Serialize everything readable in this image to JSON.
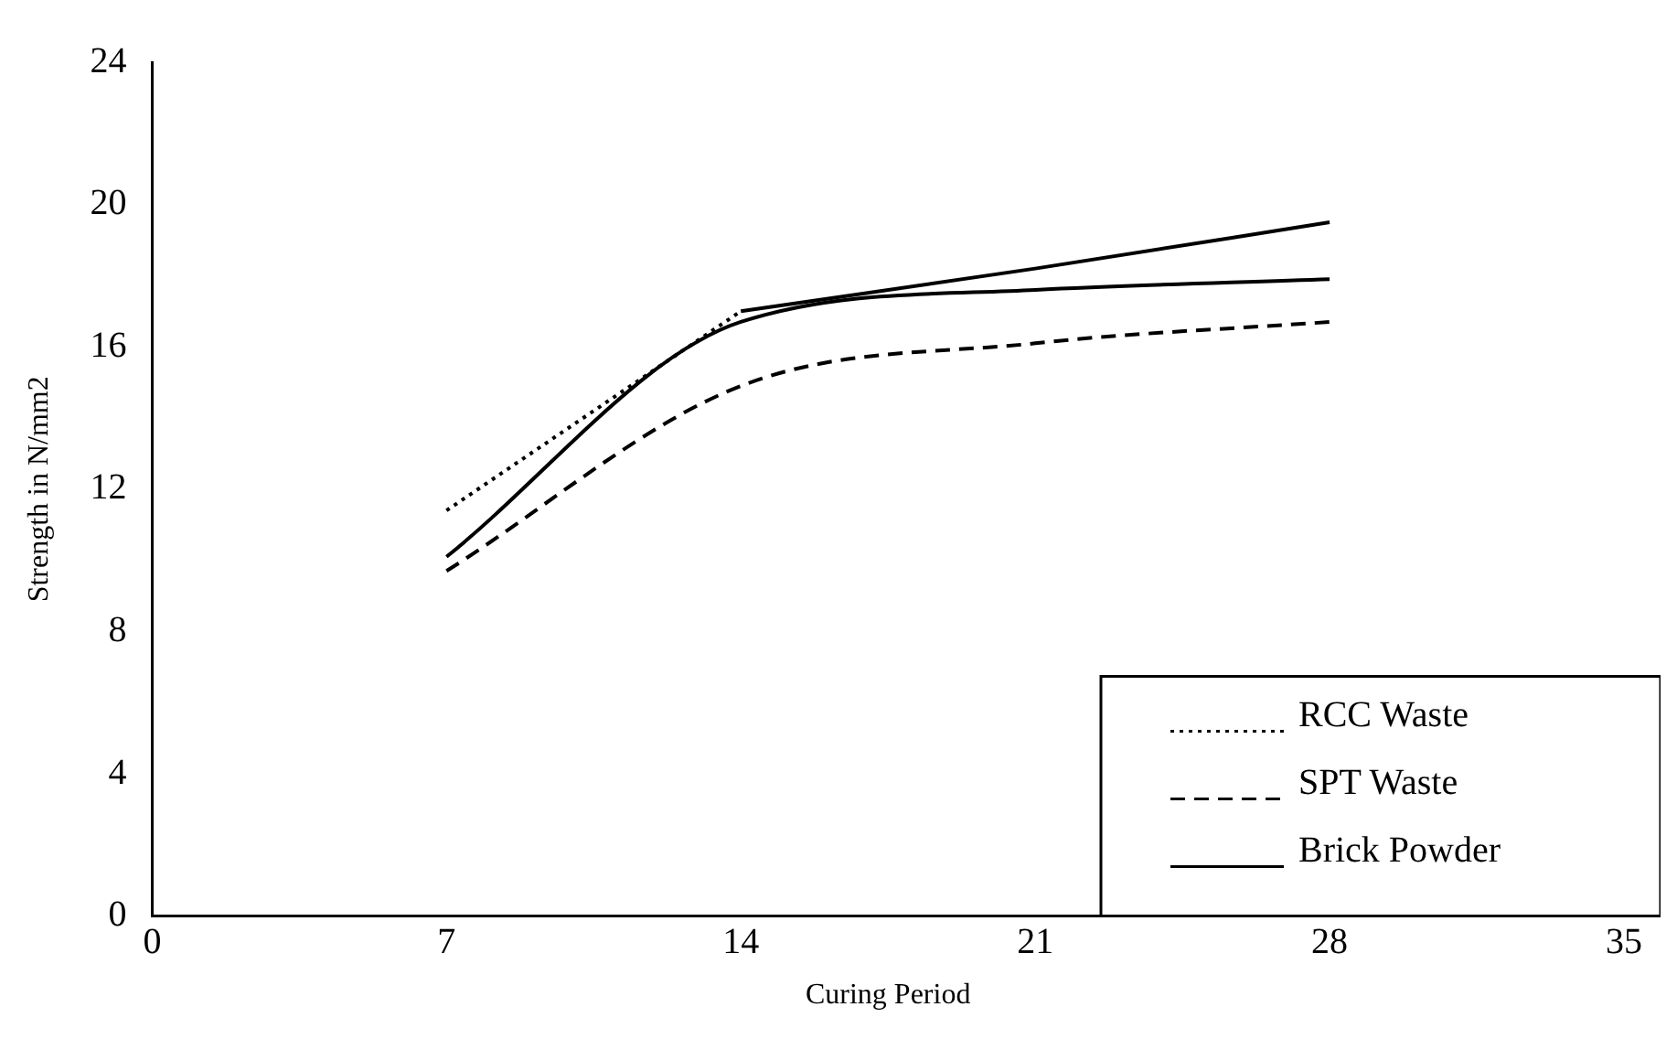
{
  "chart_data": {
    "type": "line",
    "xlabel": "Curing Period",
    "ylabel": "Strength in N/mm2",
    "x": [
      7,
      14,
      21,
      28
    ],
    "series": [
      {
        "name": "RCC Waste",
        "color": "#000000",
        "line_style": "dotted",
        "values": [
          11.4,
          17.0,
          null,
          null
        ]
      },
      {
        "name": "SPT Waste",
        "color": "#000000",
        "line_style": "dashed",
        "values": [
          9.7,
          14.9,
          16.1,
          16.7
        ]
      },
      {
        "name": "Brick Powder",
        "color": "#000000",
        "line_style": "solid",
        "values": [
          10.1,
          16.7,
          17.6,
          17.9
        ]
      },
      {
        "color": "#000000",
        "line_style": "solid",
        "values": [
          null,
          17.0,
          18.2,
          19.5
        ]
      }
    ],
    "xlim": [
      0,
      35
    ],
    "xticks": [
      0,
      7,
      14,
      21,
      28,
      35
    ],
    "ylim": [
      0,
      24
    ],
    "yticks": [
      0,
      4,
      8,
      12,
      16,
      20,
      24
    ],
    "grid": false,
    "legend": "bottom right",
    "marker": "none"
  }
}
